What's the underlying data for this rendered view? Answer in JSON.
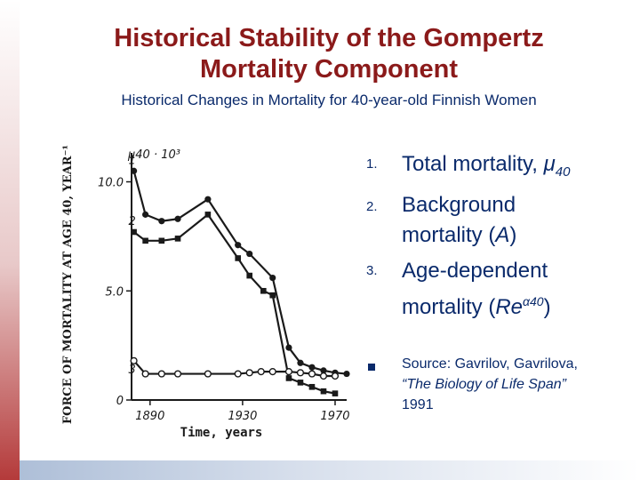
{
  "slide": {
    "title_line1": "Historical Stability of the Gompertz",
    "title_line2": "Mortality Component",
    "subtitle": "Historical Changes in Mortality for 40-year-old Finnish Women",
    "colors": {
      "title": "#8b1a1a",
      "text": "#0a2a6b",
      "accent_left": "#b43a3a",
      "accent_bottom": "#aebfd8"
    }
  },
  "bullets": [
    {
      "num": "1.",
      "text_main": "Total mortality, ",
      "text_symbol": "μ",
      "text_sub": "40"
    },
    {
      "num": "2.",
      "line1": "Background",
      "line2_pre": "mortality (",
      "line2_italic": "A",
      "line2_post": ")"
    },
    {
      "num": "3.",
      "line1": "Age-dependent",
      "line2_pre": "mortality (",
      "line2_italic": "Re",
      "line2_sup": "α40",
      "line2_post": ")"
    }
  ],
  "source": {
    "icon": "square-bullet-icon",
    "line1": "Source: Gavrilov, Gavrilova,",
    "line2_italic": "“The Biology of Life Span”",
    "line3": "1991"
  },
  "chart_data": {
    "type": "line",
    "title": "",
    "xlabel": "Time, years",
    "ylabel": "FORCE OF MORTALITY AT AGE 40, YEAR⁻¹",
    "unit_label": "μ40 · 10³",
    "xlim": [
      1882,
      1975
    ],
    "ylim": [
      0,
      11
    ],
    "x_ticks": [
      1890,
      1930,
      1970
    ],
    "y_ticks": [
      0,
      5.0,
      10.0
    ],
    "y_tick_labels": [
      "0",
      "5.0",
      "10.0"
    ],
    "grid": false,
    "legend": "none",
    "series": [
      {
        "name": "1",
        "marker": "filled-circle",
        "points": [
          [
            1883,
            10.5
          ],
          [
            1888,
            8.5
          ],
          [
            1895,
            8.2
          ],
          [
            1902,
            8.3
          ],
          [
            1915,
            9.2
          ],
          [
            1928,
            7.1
          ],
          [
            1933,
            6.7
          ],
          [
            1943,
            5.6
          ],
          [
            1950,
            2.4
          ],
          [
            1955,
            1.7
          ],
          [
            1960,
            1.5
          ],
          [
            1965,
            1.35
          ],
          [
            1970,
            1.25
          ],
          [
            1975,
            1.2
          ]
        ]
      },
      {
        "name": "2",
        "marker": "filled-square",
        "points": [
          [
            1883,
            7.7
          ],
          [
            1888,
            7.3
          ],
          [
            1895,
            7.3
          ],
          [
            1902,
            7.4
          ],
          [
            1915,
            8.5
          ],
          [
            1928,
            6.5
          ],
          [
            1933,
            5.7
          ],
          [
            1939,
            5.0
          ],
          [
            1943,
            4.8
          ],
          [
            1950,
            1.0
          ],
          [
            1955,
            0.8
          ],
          [
            1960,
            0.6
          ],
          [
            1965,
            0.4
          ],
          [
            1970,
            0.3
          ]
        ]
      },
      {
        "name": "3",
        "marker": "open-circle",
        "points": [
          [
            1883,
            1.8
          ],
          [
            1888,
            1.2
          ],
          [
            1895,
            1.2
          ],
          [
            1902,
            1.2
          ],
          [
            1915,
            1.2
          ],
          [
            1928,
            1.2
          ],
          [
            1933,
            1.25
          ],
          [
            1938,
            1.3
          ],
          [
            1943,
            1.3
          ],
          [
            1950,
            1.3
          ],
          [
            1955,
            1.25
          ],
          [
            1960,
            1.2
          ],
          [
            1965,
            1.1
          ],
          [
            1970,
            1.1
          ]
        ]
      }
    ]
  }
}
